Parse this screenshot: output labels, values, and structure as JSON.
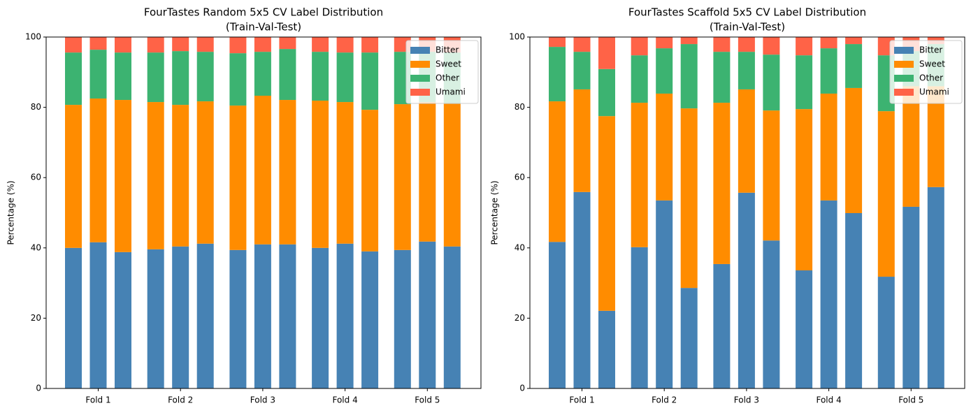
{
  "chart_data": [
    {
      "type": "bar",
      "stacked": true,
      "title": "FourTastes Random 5x5 CV Label Distribution",
      "subtitle": "(Train-Val-Test)",
      "ylabel": "Percentage (%)",
      "categories": [
        null,
        "Fold 1",
        null,
        null,
        "Fold 2",
        null,
        null,
        "Fold 3",
        null,
        null,
        "Fold 4",
        null,
        null,
        "Fold 5",
        null
      ],
      "series": [
        {
          "name": "Bitter",
          "color": "#4682b4",
          "values": [
            40.0,
            41.6,
            38.8,
            39.6,
            40.4,
            41.2,
            39.4,
            41.0,
            41.0,
            40.0,
            41.2,
            39.0,
            39.4,
            41.8,
            40.4
          ]
        },
        {
          "name": "Sweet",
          "color": "#ff8c00",
          "values": [
            40.7,
            40.9,
            43.3,
            41.9,
            40.3,
            40.5,
            41.1,
            42.3,
            41.1,
            41.9,
            40.3,
            40.3,
            41.5,
            39.7,
            40.6
          ]
        },
        {
          "name": "Other",
          "color": "#3cb371",
          "values": [
            14.9,
            13.9,
            13.5,
            14.1,
            15.3,
            14.1,
            14.9,
            12.5,
            14.5,
            13.9,
            14.1,
            16.3,
            14.9,
            14.3,
            14.6
          ]
        },
        {
          "name": "Umami",
          "color": "#ff6347",
          "values": [
            4.4,
            3.6,
            4.4,
            4.4,
            4.0,
            4.2,
            4.6,
            4.2,
            3.4,
            4.2,
            4.4,
            4.4,
            4.2,
            4.2,
            4.4
          ]
        }
      ],
      "ylim": [
        0,
        100
      ],
      "yticks": [
        0,
        20,
        40,
        60,
        80,
        100
      ],
      "legend": "upper right"
    },
    {
      "type": "bar",
      "stacked": true,
      "title": "FourTastes Scaffold 5x5 CV Label Distribution",
      "subtitle": "(Train-Val-Test)",
      "ylabel": "Percentage (%)",
      "categories": [
        null,
        "Fold 1",
        null,
        null,
        "Fold 2",
        null,
        null,
        "Fold 3",
        null,
        null,
        "Fold 4",
        null,
        null,
        "Fold 5",
        null
      ],
      "series": [
        {
          "name": "Bitter",
          "color": "#4682b4",
          "values": [
            41.7,
            55.9,
            22.1,
            40.2,
            53.5,
            28.6,
            35.4,
            55.7,
            42.1,
            33.6,
            53.5,
            49.9,
            31.8,
            51.7,
            57.3
          ]
        },
        {
          "name": "Sweet",
          "color": "#ff8c00",
          "values": [
            40.0,
            29.2,
            55.4,
            41.1,
            30.4,
            51.1,
            45.9,
            29.4,
            37.0,
            45.9,
            30.4,
            35.6,
            47.1,
            34.3,
            28.7
          ]
        },
        {
          "name": "Other",
          "color": "#3cb371",
          "values": [
            15.5,
            10.7,
            13.4,
            13.5,
            12.9,
            18.3,
            14.5,
            10.7,
            15.9,
            15.3,
            12.9,
            12.5,
            15.9,
            10.0,
            12.0
          ]
        },
        {
          "name": "Umami",
          "color": "#ff6347",
          "values": [
            2.8,
            4.2,
            9.1,
            5.2,
            3.2,
            2.0,
            4.2,
            4.2,
            5.0,
            5.2,
            3.2,
            2.0,
            5.2,
            4.0,
            2.0
          ]
        }
      ],
      "ylim": [
        0,
        100
      ],
      "yticks": [
        0,
        20,
        40,
        60,
        80,
        100
      ],
      "legend": "upper right"
    }
  ]
}
